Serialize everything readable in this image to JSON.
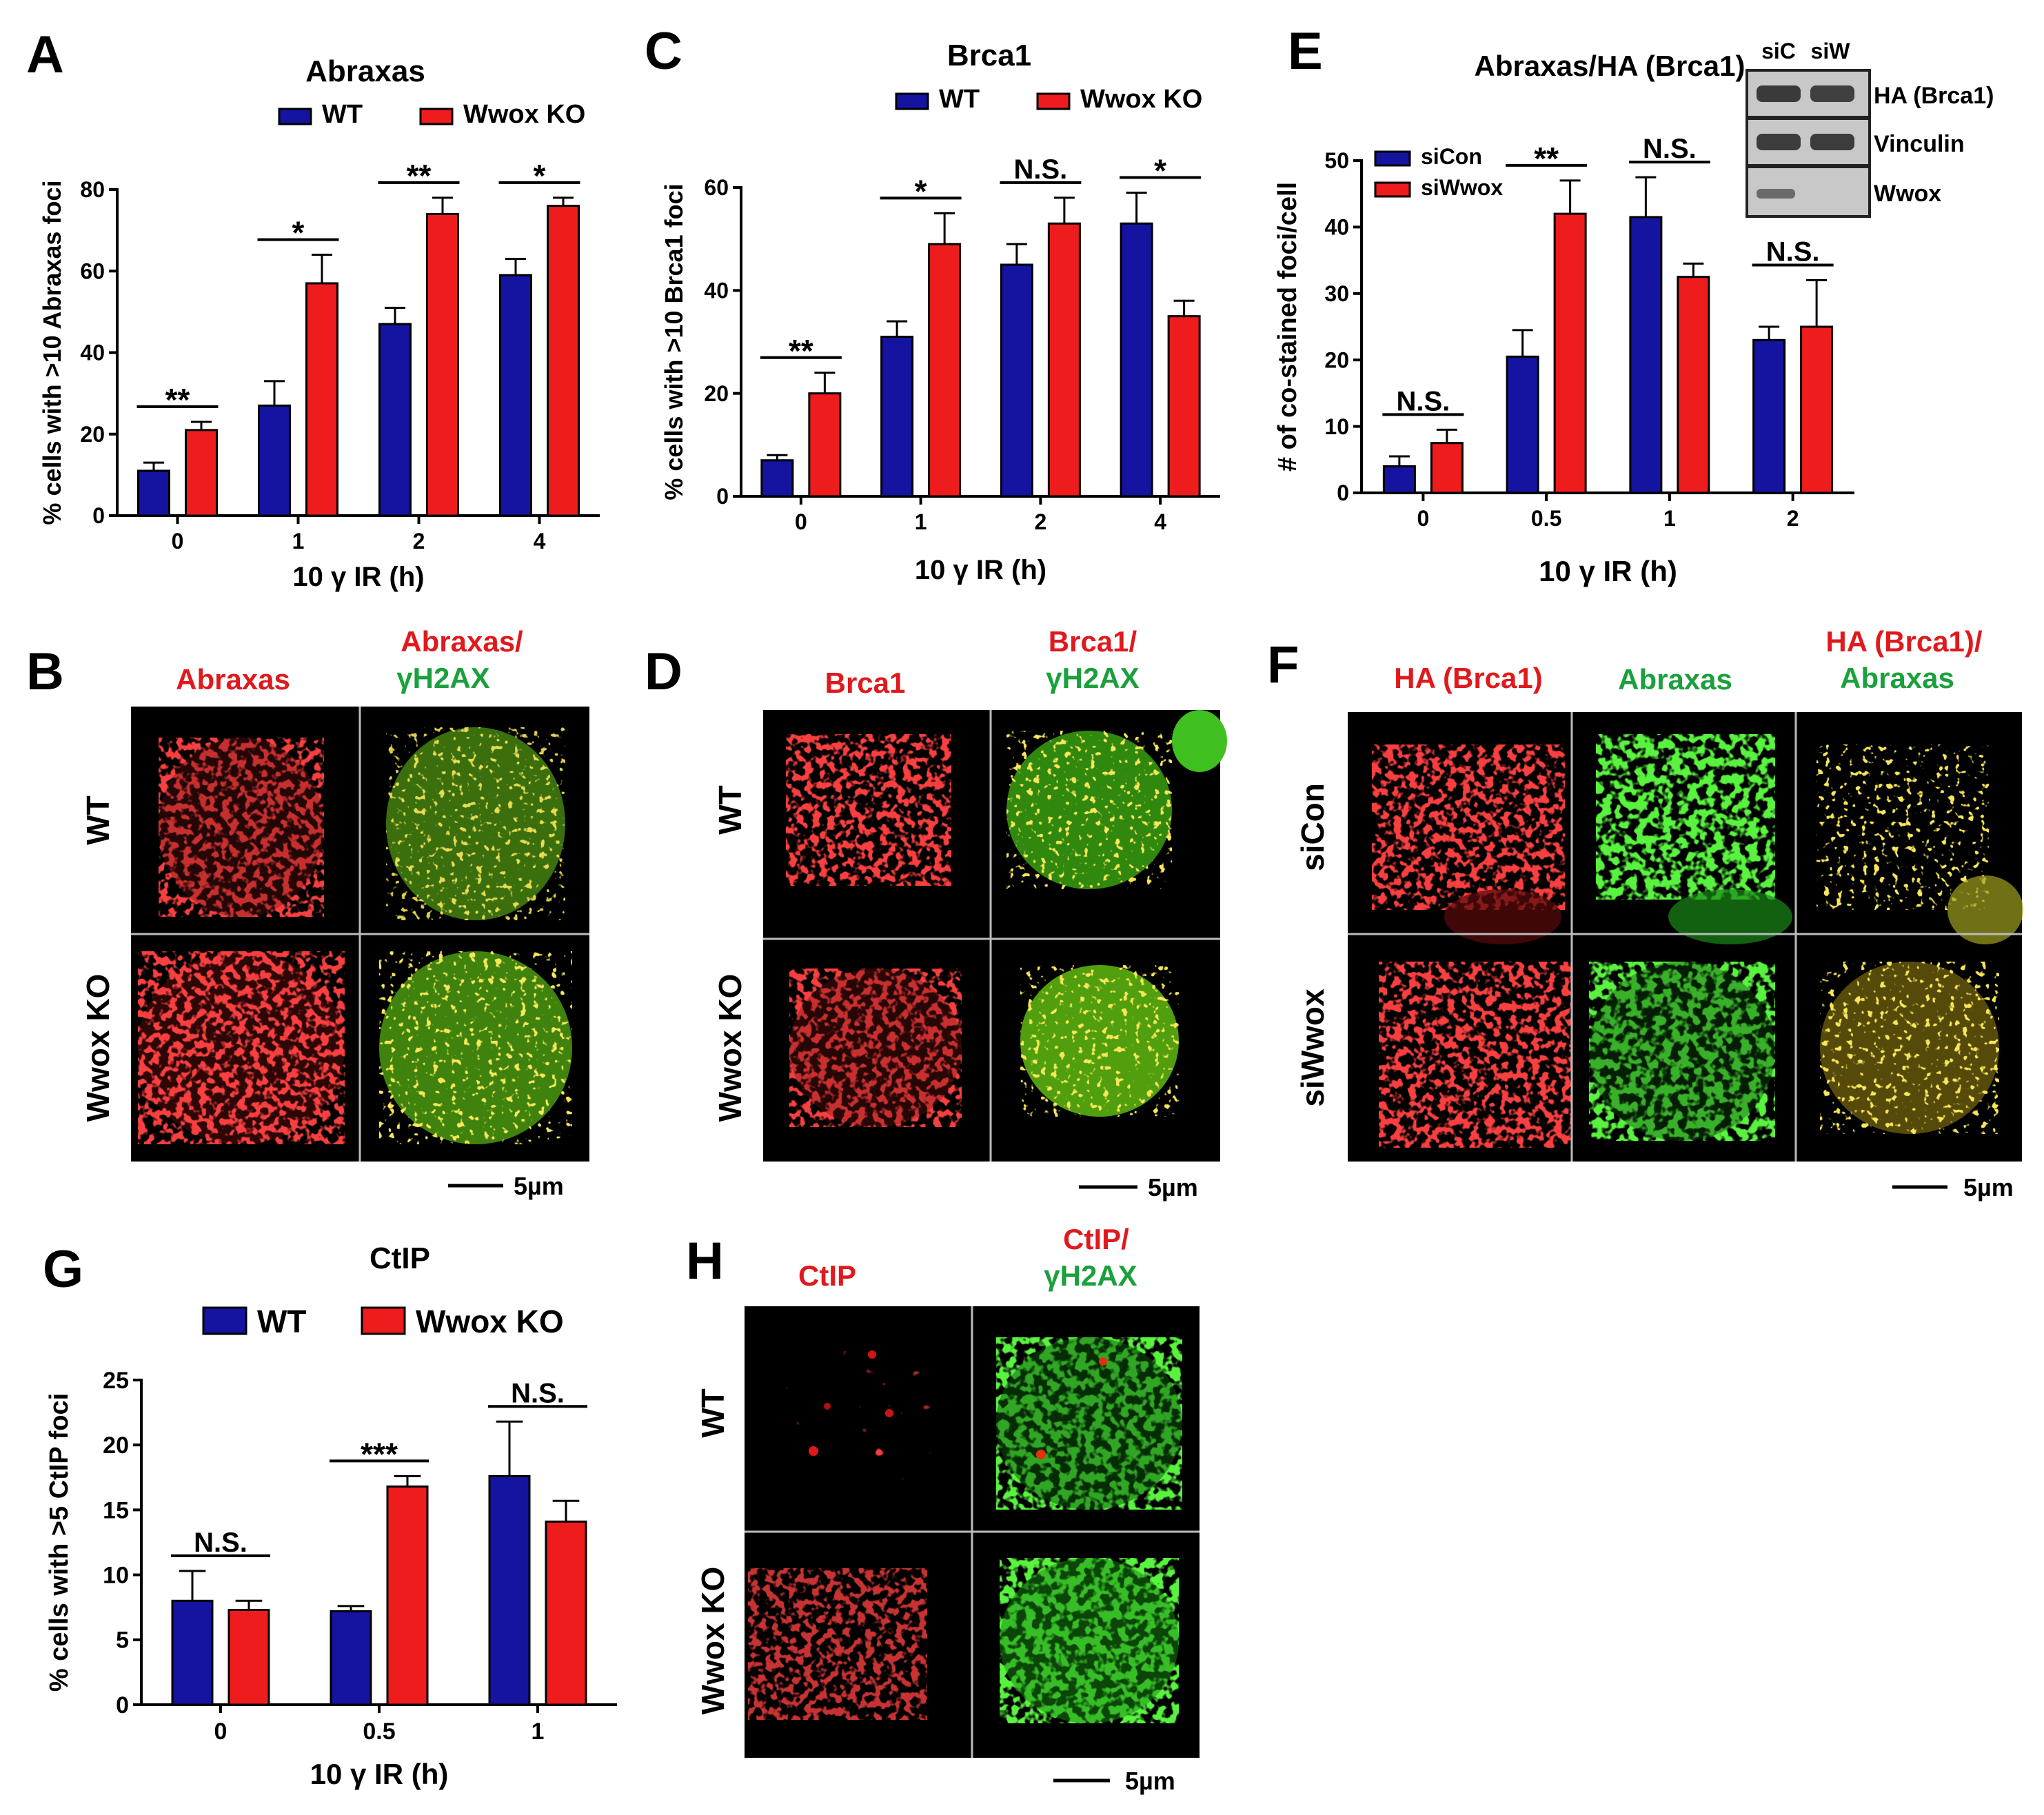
{
  "panel_letters": [
    "A",
    "B",
    "C",
    "D",
    "E",
    "F",
    "G",
    "H"
  ],
  "chart_data": [
    {
      "id": "A",
      "type": "bar",
      "title": "Abraxas",
      "categories": [
        "0",
        "1",
        "2",
        "4"
      ],
      "series": [
        {
          "name": "WT",
          "color": "#1414a0",
          "values": [
            11,
            27,
            47,
            59
          ],
          "errors": [
            2,
            6,
            4,
            4
          ]
        },
        {
          "name": "Wwox KO",
          "color": "#ee1c1c",
          "values": [
            21,
            57,
            74,
            76
          ],
          "errors": [
            2,
            7,
            4,
            2
          ]
        }
      ],
      "significance": [
        "**",
        "*",
        "**",
        "*"
      ],
      "xlabel": "10 γ IR (h)",
      "ylabel": "% cells with >10 Abraxas foci",
      "ylim": [
        0,
        80
      ],
      "yticks": [
        "0",
        "20",
        "40",
        "60",
        "80"
      ]
    },
    {
      "id": "C",
      "type": "bar",
      "title": "Brca1",
      "categories": [
        "0",
        "1",
        "2",
        "4"
      ],
      "series": [
        {
          "name": "WT",
          "color": "#1414a0",
          "values": [
            7,
            31,
            45,
            53
          ],
          "errors": [
            1,
            3,
            4,
            6
          ]
        },
        {
          "name": "Wwox KO",
          "color": "#ee1c1c",
          "values": [
            20,
            49,
            53,
            35
          ],
          "errors": [
            4,
            6,
            5,
            3
          ]
        }
      ],
      "significance": [
        "**",
        "*",
        "N.S.",
        "*"
      ],
      "xlabel": "10 γ IR (h)",
      "ylabel": "% cells with >10 Brca1 foci",
      "ylim": [
        0,
        60
      ],
      "yticks": [
        "0",
        "20",
        "40",
        "60"
      ]
    },
    {
      "id": "E",
      "type": "bar",
      "title": "Abraxas/HA (Brca1)",
      "categories": [
        "0",
        "0.5",
        "1",
        "2"
      ],
      "series": [
        {
          "name": "siCon",
          "color": "#1414a0",
          "values": [
            4,
            20.5,
            41.5,
            23
          ],
          "errors": [
            1.5,
            4,
            6,
            2
          ]
        },
        {
          "name": "siWwox",
          "color": "#ee1c1c",
          "values": [
            7.5,
            42,
            32.5,
            25
          ],
          "errors": [
            2,
            5,
            2,
            7
          ]
        }
      ],
      "significance": [
        "N.S.",
        "**",
        "N.S.",
        "N.S."
      ],
      "xlabel": "10 γ IR (h)",
      "ylabel": "# of co-stained foci/cell",
      "ylim": [
        0,
        50
      ],
      "yticks": [
        "0",
        "10",
        "20",
        "30",
        "40",
        "50"
      ]
    },
    {
      "id": "G",
      "type": "bar",
      "title": "CtIP",
      "categories": [
        "0",
        "0.5",
        "1"
      ],
      "series": [
        {
          "name": "WT",
          "color": "#1414a0",
          "values": [
            8,
            7.2,
            17.6
          ],
          "errors": [
            2.3,
            0.4,
            4.2
          ]
        },
        {
          "name": "Wwox KO",
          "color": "#ee1c1c",
          "values": [
            7.3,
            16.8,
            14.1
          ],
          "errors": [
            0.7,
            0.8,
            1.6
          ]
        }
      ],
      "significance": [
        "N.S.",
        "***",
        "N.S."
      ],
      "xlabel": "10 γ IR (h)",
      "ylabel": "% cells with >5 CtIP foci",
      "ylim": [
        0,
        25
      ],
      "yticks": [
        "0",
        "5",
        "10",
        "15",
        "20",
        "25"
      ]
    }
  ],
  "western_blot": {
    "lanes": [
      "siC",
      "siW"
    ],
    "rows": [
      "HA (Brca1)",
      "Vinculin",
      "Wwox"
    ]
  },
  "micrographs": {
    "B": {
      "col_titles": [
        "Abraxas",
        "Abraxas/",
        "γH2AX"
      ],
      "rows": [
        "WT",
        "Wwox KO"
      ],
      "scale": "5µm"
    },
    "D": {
      "col_titles": [
        "Brca1",
        "Brca1/",
        "γH2AX"
      ],
      "rows": [
        "WT",
        "Wwox KO"
      ],
      "scale": "5µm"
    },
    "F": {
      "col_titles": [
        "HA (Brca1)",
        "Abraxas",
        "HA (Brca1)/",
        "Abraxas"
      ],
      "rows": [
        "siCon",
        "siWwox"
      ],
      "scale": "5µm"
    },
    "H": {
      "col_titles": [
        "CtIP",
        "CtIP/",
        "γH2AX"
      ],
      "rows": [
        "WT",
        "Wwox KO"
      ],
      "scale": "5µm"
    }
  },
  "colors": {
    "red_label": "#e0191d",
    "green_label": "#1aa03c",
    "blue_bar": "#1414a0",
    "red_bar": "#ee1c1c"
  }
}
